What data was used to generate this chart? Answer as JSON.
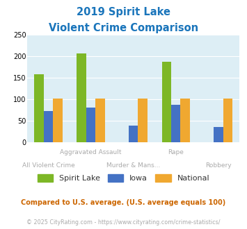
{
  "title_line1": "2019 Spirit Lake",
  "title_line2": "Violent Crime Comparison",
  "categories": [
    "All Violent Crime",
    "Aggravated Assault",
    "Murder & Mans...",
    "Rape",
    "Robbery"
  ],
  "series": {
    "Spirit Lake": [
      157,
      205,
      0,
      186,
      0
    ],
    "Iowa": [
      72,
      80,
      38,
      87,
      35
    ],
    "National": [
      101,
      101,
      101,
      101,
      101
    ]
  },
  "colors": {
    "Spirit Lake": "#7db726",
    "Iowa": "#4472c4",
    "National": "#f0a830"
  },
  "ylim": [
    0,
    250
  ],
  "yticks": [
    0,
    50,
    100,
    150,
    200,
    250
  ],
  "background_color": "#ddeef5",
  "title_color": "#1a75bb",
  "footnote1": "Compared to U.S. average. (U.S. average equals 100)",
  "footnote2": "© 2025 CityRating.com - https://www.cityrating.com/crime-statistics/",
  "footnote1_color": "#cc6600",
  "footnote2_color": "#aaaaaa",
  "footnote2_link_color": "#4472c4",
  "xtick_row1": [
    "",
    "Aggravated Assault",
    "",
    "Rape",
    ""
  ],
  "xtick_row2": [
    "All Violent Crime",
    "",
    "Murder & Mans...",
    "",
    "Robbery"
  ]
}
